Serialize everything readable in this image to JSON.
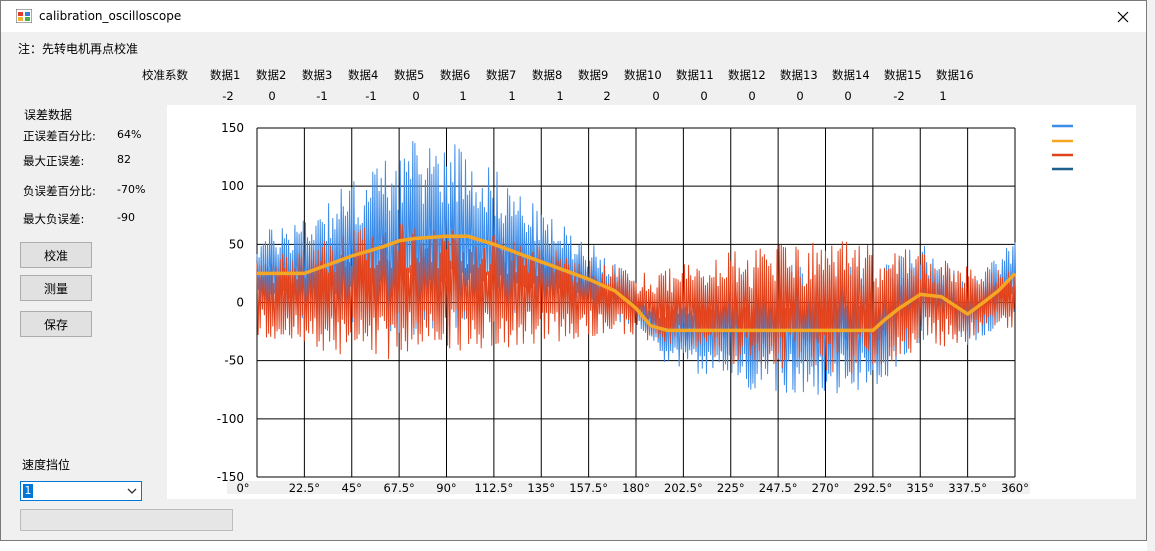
{
  "window": {
    "title": "calibration_oscilloscope",
    "close_label": "✕"
  },
  "note": "注：先转电机再点校准",
  "calib": {
    "headers": [
      "校准系数",
      "数据1",
      "数据2",
      "数据3",
      "数据4",
      "数据5",
      "数据6",
      "数据7",
      "数据8",
      "数据9",
      "数据10",
      "数据11",
      "数据12",
      "数据13",
      "数据14",
      "数据15",
      "数据16"
    ],
    "values": [
      "-2",
      "0",
      "-1",
      "-1",
      "0",
      "1",
      "1",
      "1",
      "2",
      "0",
      "0",
      "0",
      "0",
      "0",
      "-2",
      "1"
    ]
  },
  "error": {
    "section": "误差数据",
    "pos_pct_label": "正误差百分比:",
    "pos_pct": "64%",
    "max_pos_label": "最大正误差:",
    "max_pos": "82",
    "neg_pct_label": "负误差百分比:",
    "neg_pct": "-70%",
    "max_neg_label": "最大负误差:",
    "max_neg": "-90"
  },
  "buttons": {
    "calibrate": "校准",
    "measure": "测量",
    "save": "保存"
  },
  "speed": {
    "label": "速度挡位",
    "value": "1"
  },
  "progress": {
    "percent": 0
  },
  "chart_data": {
    "type": "line",
    "title": "",
    "xlabel": "",
    "ylabel": "",
    "xlim": [
      0,
      360
    ],
    "ylim": [
      -150,
      150
    ],
    "x_ticks": [
      0,
      22.5,
      45,
      67.5,
      90,
      112.5,
      135,
      157.5,
      180,
      202.5,
      225,
      247.5,
      270,
      292.5,
      315,
      337.5,
      360
    ],
    "x_tick_labels": [
      "0°",
      "22.5°",
      "45°",
      "67.5°",
      "90°",
      "112.5°",
      "135°",
      "157.5°",
      "180°",
      "202.5°",
      "225°",
      "247.5°",
      "270°",
      "292.5°",
      "315°",
      "337.5°",
      "360°"
    ],
    "y_ticks": [
      -150,
      -100,
      -50,
      0,
      50,
      100,
      150
    ],
    "y_tick_labels": [
      "-150",
      "-100",
      "-50",
      "0",
      "50",
      "100",
      "150"
    ],
    "grid": true,
    "legend": "top-right",
    "series": [
      {
        "name": "",
        "color": "#3d8ce8",
        "style": "noisy",
        "envelope": [
          [
            0,
            30,
            40
          ],
          [
            22.5,
            50,
            50
          ],
          [
            45,
            60,
            60
          ],
          [
            67.5,
            75,
            75
          ],
          [
            90,
            80,
            80
          ],
          [
            112.5,
            60,
            60
          ],
          [
            135,
            40,
            40
          ],
          [
            157.5,
            30,
            30
          ],
          [
            180,
            20,
            20
          ],
          [
            202.5,
            30,
            30
          ],
          [
            225,
            45,
            45
          ],
          [
            247.5,
            50,
            50
          ],
          [
            270,
            55,
            55
          ],
          [
            292.5,
            50,
            50
          ],
          [
            315,
            40,
            40
          ],
          [
            337.5,
            25,
            25
          ],
          [
            360,
            30,
            30
          ]
        ],
        "points_desc": "high-frequency oscillation around moving baseline"
      },
      {
        "name": "",
        "color": "#f5a623",
        "style": "smooth",
        "points": [
          [
            0,
            25
          ],
          [
            15,
            25
          ],
          [
            22.5,
            25
          ],
          [
            30,
            30
          ],
          [
            45,
            40
          ],
          [
            60,
            48
          ],
          [
            67.5,
            53
          ],
          [
            75,
            55
          ],
          [
            90,
            57
          ],
          [
            100,
            57
          ],
          [
            112.5,
            50
          ],
          [
            135,
            35
          ],
          [
            157.5,
            20
          ],
          [
            170,
            10
          ],
          [
            180,
            -5
          ],
          [
            187,
            -20
          ],
          [
            195,
            -24
          ],
          [
            202.5,
            -24
          ],
          [
            225,
            -24
          ],
          [
            247.5,
            -24
          ],
          [
            270,
            -24
          ],
          [
            292.5,
            -24
          ],
          [
            298,
            -15
          ],
          [
            305,
            -5
          ],
          [
            315,
            7
          ],
          [
            325,
            5
          ],
          [
            337.5,
            -10
          ],
          [
            345,
            0
          ],
          [
            352,
            10
          ],
          [
            360,
            25
          ]
        ]
      },
      {
        "name": "",
        "color": "#e2421b",
        "style": "noisy",
        "envelope": [
          [
            0,
            30,
            30
          ],
          [
            22.5,
            40,
            40
          ],
          [
            45,
            50,
            50
          ],
          [
            67.5,
            55,
            55
          ],
          [
            90,
            50,
            50
          ],
          [
            112.5,
            45,
            45
          ],
          [
            135,
            40,
            40
          ],
          [
            157.5,
            30,
            30
          ],
          [
            180,
            25,
            25
          ],
          [
            202.5,
            35,
            35
          ],
          [
            225,
            45,
            45
          ],
          [
            247.5,
            50,
            50
          ],
          [
            270,
            55,
            55
          ],
          [
            292.5,
            50,
            50
          ],
          [
            315,
            40,
            40
          ],
          [
            337.5,
            30,
            30
          ],
          [
            360,
            25,
            25
          ]
        ],
        "points_desc": "high-frequency oscillation around zero"
      },
      {
        "name": "",
        "color": "#1f5f8b",
        "style": "legend-only"
      }
    ]
  }
}
